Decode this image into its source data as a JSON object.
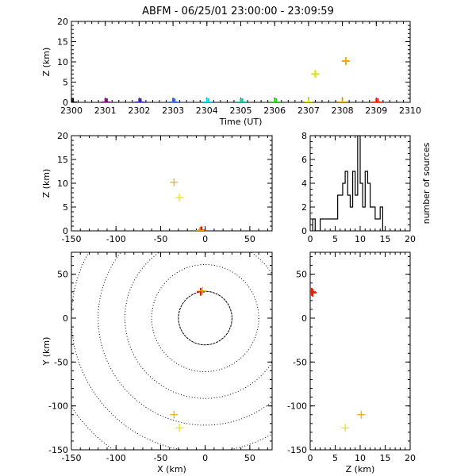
{
  "title": "ABFM - 06/25/01 23:00:00 - 23:09:59",
  "colors": {
    "t2300": "#000000",
    "t2301": "#6a0d6a",
    "t2302": "#3a1aa8",
    "t2303": "#2a5fd8",
    "t2304": "#11d6e8",
    "t2305": "#12c49a",
    "t2306": "#2cd31e",
    "t2307": "#d8e400",
    "t2308": "#f2a800",
    "t2309": "#e8200a",
    "src_red": "#e8200a",
    "src_orange": "#f2a800",
    "src_yellow": "#e8e400"
  },
  "chart_data": [
    {
      "id": "time_height",
      "type": "scatter",
      "xlabel": "Time (UT)",
      "ylabel": "Z (km)",
      "xlim": [
        2300,
        2310
      ],
      "ylim": [
        0,
        20
      ],
      "xticks": [
        "2300",
        "2301",
        "2302",
        "2303",
        "2304",
        "2305",
        "2306",
        "2307",
        "2308",
        "2309",
        "2310"
      ],
      "yticks": [
        "0",
        "5",
        "10",
        "15",
        "20"
      ],
      "points": [
        {
          "x": 2300.0,
          "y": 0,
          "color": "t2300"
        },
        {
          "x": 2300.05,
          "y": 0,
          "color": "t2300"
        },
        {
          "x": 2301.0,
          "y": 0,
          "color": "t2301"
        },
        {
          "x": 2301.05,
          "y": 0,
          "color": "t2301"
        },
        {
          "x": 2302.0,
          "y": 0,
          "color": "t2302"
        },
        {
          "x": 2302.05,
          "y": 0,
          "color": "t2302"
        },
        {
          "x": 2303.0,
          "y": 0,
          "color": "t2303"
        },
        {
          "x": 2303.05,
          "y": 0,
          "color": "t2303"
        },
        {
          "x": 2304.0,
          "y": 0,
          "color": "t2304"
        },
        {
          "x": 2304.05,
          "y": 0,
          "color": "t2304"
        },
        {
          "x": 2305.0,
          "y": 0,
          "color": "t2305"
        },
        {
          "x": 2305.05,
          "y": 0,
          "color": "t2305"
        },
        {
          "x": 2306.0,
          "y": 0,
          "color": "t2306"
        },
        {
          "x": 2306.05,
          "y": 0,
          "color": "t2306"
        },
        {
          "x": 2307.0,
          "y": 0,
          "color": "t2307"
        },
        {
          "x": 2307.2,
          "y": 7.0,
          "color": "t2307"
        },
        {
          "x": 2308.0,
          "y": 0,
          "color": "t2308"
        },
        {
          "x": 2308.1,
          "y": 10.2,
          "color": "t2308"
        },
        {
          "x": 2309.0,
          "y": 0,
          "color": "t2309"
        },
        {
          "x": 2309.05,
          "y": 0,
          "color": "t2309"
        }
      ]
    },
    {
      "id": "x_height",
      "type": "scatter",
      "xlabel": "",
      "ylabel": "Z (km)",
      "xlim": [
        -150,
        75
      ],
      "ylim": [
        0,
        20
      ],
      "xticks": [
        "-150",
        "-100",
        "-50",
        "0",
        "50"
      ],
      "yticks": [
        "0",
        "5",
        "10",
        "15",
        "20"
      ],
      "points": [
        {
          "x": -35,
          "y": 10.2,
          "color": "src_orange"
        },
        {
          "x": -29,
          "y": 7.0,
          "color": "src_yellow"
        },
        {
          "x": -5,
          "y": 0,
          "color": "src_red"
        },
        {
          "x": -4,
          "y": 0.1,
          "color": "src_red"
        },
        {
          "x": -6,
          "y": 0.05,
          "color": "src_orange"
        }
      ]
    },
    {
      "id": "height_histogram",
      "type": "bar",
      "xlabel": "",
      "ylabel": "number of sources",
      "xlim": [
        0,
        20
      ],
      "ylim": [
        0,
        8
      ],
      "xticks": [
        "0",
        "5",
        "10",
        "15",
        "20"
      ],
      "yticks": [
        "0",
        "2",
        "4",
        "6",
        "8"
      ],
      "bin_width": 0.5,
      "bin_starts": [
        0.5,
        1.0,
        1.5,
        2.0,
        2.5,
        3.0,
        3.5,
        4.0,
        4.5,
        5.0,
        5.5,
        6.0,
        6.5,
        7.0,
        7.5,
        8.0,
        8.5,
        9.0,
        9.5,
        10.0,
        10.5,
        11.0,
        11.5,
        12.0,
        12.5,
        13.0,
        13.5,
        14.0,
        14.5
      ],
      "values": [
        1,
        0,
        0,
        1,
        1,
        1,
        1,
        1,
        1,
        1,
        3,
        3,
        4,
        5,
        3,
        2,
        5,
        3,
        8,
        4,
        2,
        5,
        4,
        2,
        2,
        1,
        1,
        2,
        0
      ]
    },
    {
      "id": "plan_view",
      "type": "scatter",
      "xlabel": "X (km)",
      "ylabel": "Y (km)",
      "xlim": [
        -150,
        75
      ],
      "ylim": [
        -150,
        75
      ],
      "xticks": [
        "-150",
        "-100",
        "-50",
        "0",
        "50"
      ],
      "yticks": [
        "-150",
        "-100",
        "-50",
        "0",
        "50"
      ],
      "range_rings": [
        30,
        60,
        90,
        120,
        150,
        180
      ],
      "points": [
        {
          "x": -5,
          "y": 30,
          "color": "src_red"
        },
        {
          "x": -3,
          "y": 31,
          "color": "src_orange"
        },
        {
          "x": -35,
          "y": -110,
          "color": "src_orange"
        },
        {
          "x": -29,
          "y": -125,
          "color": "src_yellow"
        }
      ]
    },
    {
      "id": "height_y",
      "type": "scatter",
      "xlabel": "Z (km)",
      "ylabel": "",
      "xlim": [
        0,
        20
      ],
      "ylim": [
        -150,
        75
      ],
      "xticks": [
        "0",
        "5",
        "10",
        "15",
        "20"
      ],
      "yticks": [
        "-150",
        "-100",
        "-50",
        "0",
        "50"
      ],
      "points": [
        {
          "x": 0.3,
          "y": 30,
          "color": "src_red"
        },
        {
          "x": 0.5,
          "y": 29,
          "color": "src_red"
        },
        {
          "x": 10.2,
          "y": -110,
          "color": "src_orange"
        },
        {
          "x": 7.0,
          "y": -125,
          "color": "src_yellow"
        }
      ]
    }
  ]
}
